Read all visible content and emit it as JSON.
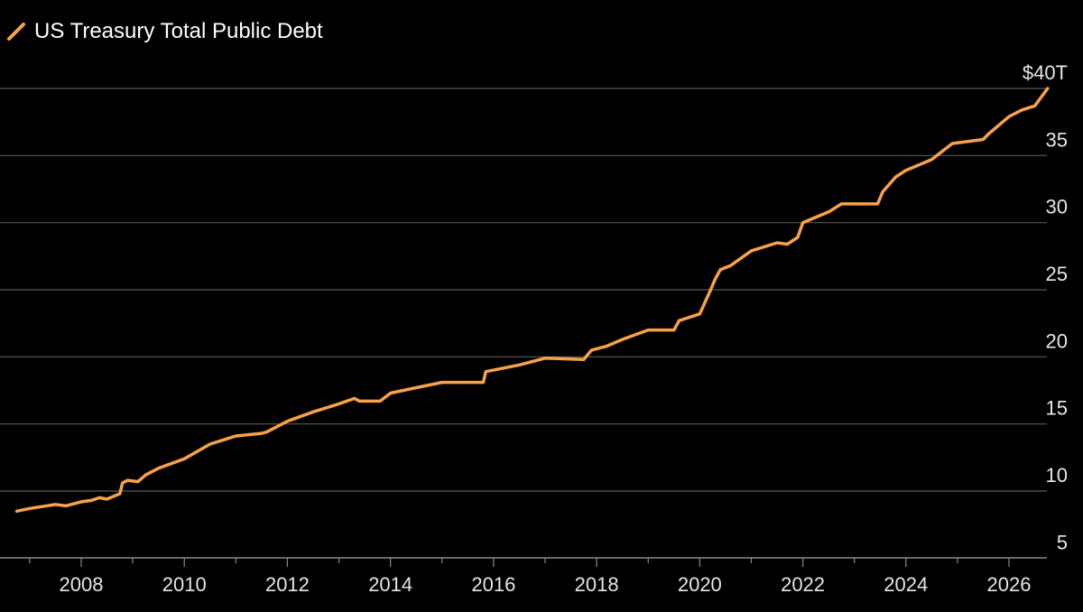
{
  "legend": {
    "series_name": "US Treasury Total Public Debt"
  },
  "colors": {
    "line": "#f7a24a",
    "grid": "#5a5a5a",
    "axis": "#8a8a8a",
    "background": "#000000",
    "text": "#e6e6e6"
  },
  "chart_data": {
    "type": "line",
    "title": "",
    "xlabel": "",
    "ylabel": "",
    "grid": true,
    "legend_position": "top-left",
    "y_axis_side": "right",
    "x_ticks": [
      "2008",
      "2010",
      "2012",
      "2014",
      "2016",
      "2018",
      "2020",
      "2022",
      "2024",
      "2026"
    ],
    "y_ticks": [
      {
        "value": 5,
        "label": "5"
      },
      {
        "value": 10,
        "label": "10"
      },
      {
        "value": 15,
        "label": "15"
      },
      {
        "value": 20,
        "label": "20"
      },
      {
        "value": 25,
        "label": "25"
      },
      {
        "value": 30,
        "label": "30"
      },
      {
        "value": 35,
        "label": "35"
      },
      {
        "value": 40,
        "label": "$40T"
      }
    ],
    "xlim": [
      2006.6,
      2027.4
    ],
    "ylim": [
      3.5,
      42
    ],
    "series": [
      {
        "name": "US Treasury Total Public Debt",
        "x": [
          2006.75,
          2007.0,
          2007.5,
          2007.7,
          2008.0,
          2008.2,
          2008.35,
          2008.5,
          2008.75,
          2008.8,
          2008.9,
          2009.1,
          2009.25,
          2009.5,
          2010.0,
          2010.5,
          2011.0,
          2011.5,
          2011.6,
          2012.0,
          2012.5,
          2013.0,
          2013.3,
          2013.4,
          2013.8,
          2014.0,
          2014.5,
          2015.0,
          2015.8,
          2015.85,
          2016.5,
          2017.0,
          2017.75,
          2017.9,
          2018.2,
          2018.5,
          2019.0,
          2019.5,
          2019.6,
          2020.0,
          2020.2,
          2020.3,
          2020.4,
          2020.6,
          2021.0,
          2021.5,
          2021.7,
          2021.9,
          2022.0,
          2022.5,
          2022.75,
          2023.0,
          2023.45,
          2023.55,
          2023.8,
          2024.0,
          2024.5,
          2024.9,
          2025.5,
          2025.6,
          2026.0,
          2026.25,
          2026.5,
          2026.75
        ],
        "values": [
          8.5,
          8.7,
          9.0,
          8.9,
          9.2,
          9.3,
          9.5,
          9.4,
          9.8,
          10.6,
          10.8,
          10.7,
          11.2,
          11.7,
          12.4,
          13.5,
          14.1,
          14.3,
          14.4,
          15.2,
          15.9,
          16.5,
          16.9,
          16.7,
          16.7,
          17.3,
          17.7,
          18.1,
          18.1,
          18.9,
          19.4,
          19.9,
          19.8,
          20.5,
          20.8,
          21.3,
          22.0,
          22.0,
          22.7,
          23.2,
          24.9,
          25.8,
          26.5,
          26.8,
          27.9,
          28.5,
          28.4,
          28.9,
          30.0,
          30.8,
          31.4,
          31.4,
          31.4,
          32.3,
          33.4,
          33.9,
          34.7,
          35.9,
          36.2,
          36.6,
          37.9,
          38.4,
          38.7,
          40.0
        ]
      }
    ]
  }
}
